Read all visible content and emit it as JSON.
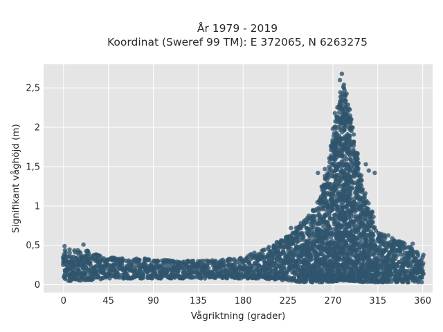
{
  "chart_data": {
    "type": "scatter",
    "title": "År 1979 - 2019",
    "subtitle": "Koordinat (Sweref 99 TM): E 372065, N 6263275",
    "xlabel": "Vågriktning (grader)",
    "ylabel": "Signifikant våghöjd (m)",
    "xlim": [
      -20,
      370
    ],
    "ylim": [
      -0.1,
      2.8
    ],
    "x_ticks": [
      0,
      45,
      90,
      135,
      180,
      225,
      270,
      315,
      360
    ],
    "x_tick_labels": [
      "0",
      "45",
      "90",
      "135",
      "180",
      "225",
      "270",
      "315",
      "360"
    ],
    "y_ticks": [
      0,
      0.5,
      1,
      1.5,
      2,
      2.5
    ],
    "y_tick_labels": [
      "0",
      "0,5",
      "1",
      "1,5",
      "2",
      "2,5"
    ],
    "grid": true,
    "marker_color": "#2f556d",
    "background_color": "#e5e5e5",
    "envelope": {
      "description": "approximate per-direction range of the dense point cloud",
      "direction_deg": [
        0,
        20,
        45,
        90,
        135,
        180,
        200,
        225,
        240,
        255,
        265,
        275,
        280,
        285,
        290,
        300,
        315,
        330,
        345,
        360
      ],
      "lower_m": [
        0.05,
        0.05,
        0.08,
        0.08,
        0.08,
        0.08,
        0.08,
        0.05,
        0.03,
        0.03,
        0.03,
        0.05,
        0.05,
        0.05,
        0.05,
        0.03,
        0.03,
        0.03,
        0.03,
        0.03
      ],
      "upper_m": [
        0.45,
        0.45,
        0.35,
        0.33,
        0.3,
        0.35,
        0.45,
        0.62,
        0.8,
        1.05,
        1.5,
        2.3,
        2.6,
        2.4,
        2.0,
        1.3,
        0.7,
        0.6,
        0.52,
        0.38
      ]
    },
    "outliers": [
      {
        "x": 279,
        "y": 2.68
      },
      {
        "x": 277,
        "y": 2.6
      },
      {
        "x": 272,
        "y": 2.18
      },
      {
        "x": 270,
        "y": 1.98
      },
      {
        "x": 262,
        "y": 1.47
      },
      {
        "x": 255,
        "y": 1.42
      },
      {
        "x": 303,
        "y": 1.53
      },
      {
        "x": 306,
        "y": 1.45
      },
      {
        "x": 312,
        "y": 1.42
      },
      {
        "x": 228,
        "y": 0.72
      },
      {
        "x": 20,
        "y": 0.51
      },
      {
        "x": 1,
        "y": 0.49
      },
      {
        "x": 350,
        "y": 0.52
      }
    ]
  }
}
